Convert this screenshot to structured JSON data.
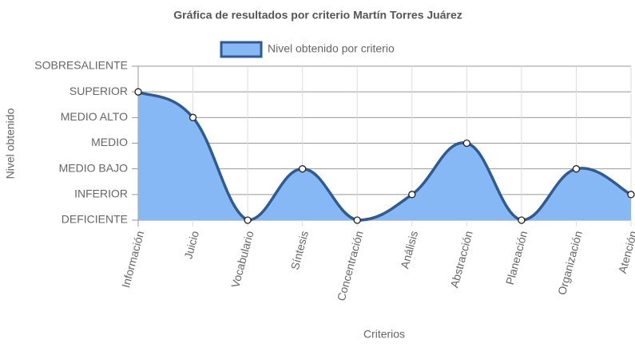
{
  "chart_data": {
    "type": "line",
    "title": "Gráfica de resultados por criterio Martín Torres Juárez",
    "x_label": "Criterios",
    "y_label": "Nivel obtenido",
    "categories": [
      "Información",
      "Juicio",
      "Vocabulario",
      "Síntesis",
      "Concentración",
      "Análisis",
      "Abstracción",
      "Planeación",
      "Organización",
      "Atención"
    ],
    "series": [
      {
        "name": "Nivel obtenido por criterio",
        "color": "#2e5b93",
        "fill": "#87b8f6",
        "values": [
          5,
          4,
          0,
          2,
          0,
          1,
          3,
          0,
          2,
          1
        ]
      }
    ],
    "ylim": [
      0,
      6
    ],
    "yticks": [
      {
        "value": 0,
        "label": "DEFICIENTE"
      },
      {
        "value": 1,
        "label": "INFERIOR"
      },
      {
        "value": 2,
        "label": "MEDIO BAJO"
      },
      {
        "value": 3,
        "label": "MEDIO"
      },
      {
        "value": 4,
        "label": "MEDIO ALTO"
      },
      {
        "value": 5,
        "label": "SUPERIOR"
      },
      {
        "value": 6,
        "label": "SOBRESALIENTE"
      }
    ],
    "grid": true,
    "legend": "top"
  }
}
